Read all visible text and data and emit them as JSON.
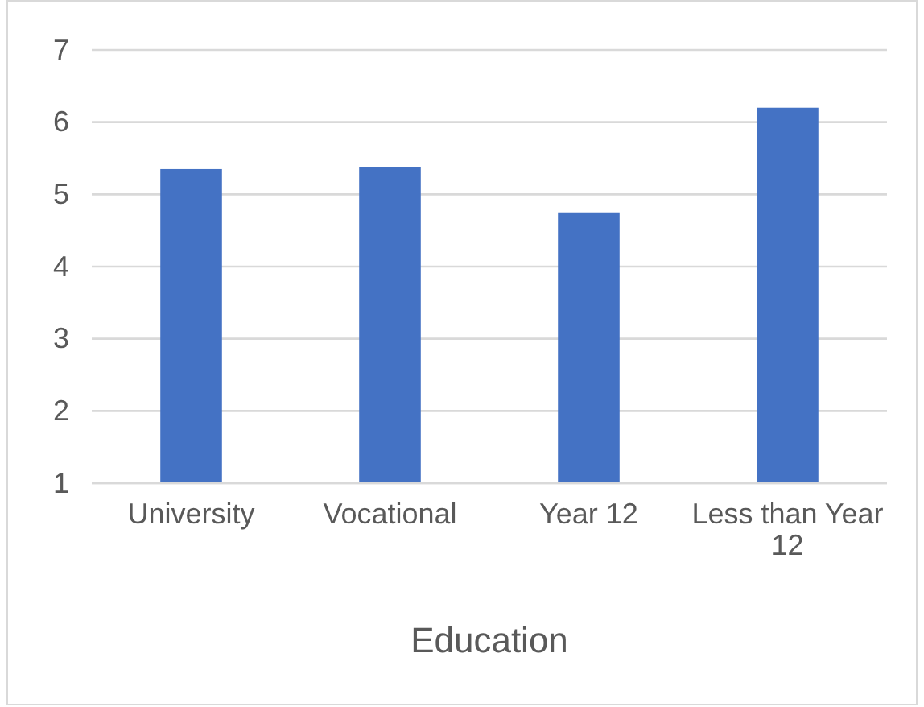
{
  "chart_data": {
    "type": "bar",
    "xlabel": "Education",
    "categories": [
      "University",
      "Vocational",
      "Year 12",
      "Less than Year 12"
    ],
    "values": [
      5.35,
      5.38,
      4.75,
      6.2
    ],
    "color": "#4472c4",
    "ylim": [
      1,
      7
    ],
    "yticks": [
      1,
      2,
      3,
      4,
      5,
      6,
      7
    ],
    "grid": "y"
  }
}
